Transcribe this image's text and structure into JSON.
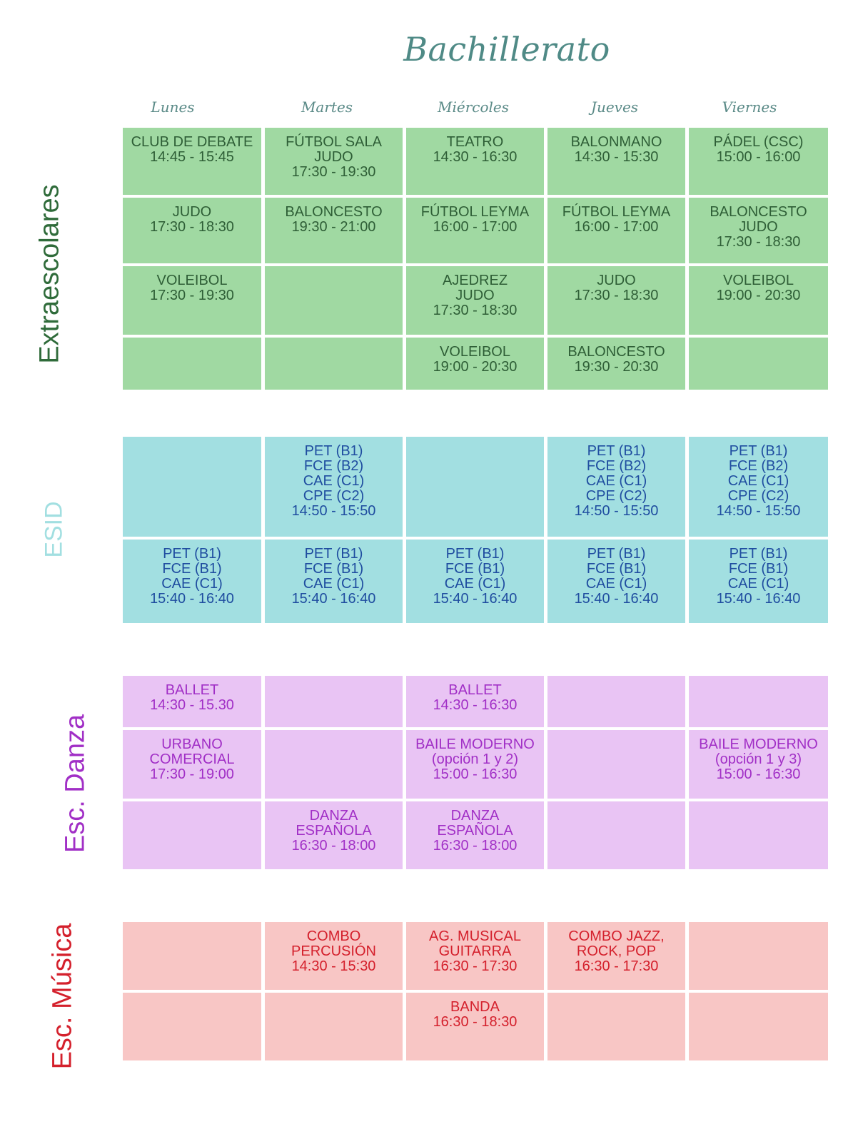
{
  "title": "Bachillerato",
  "days": [
    "Lunes",
    "Martes",
    "Miércoles",
    "Jueves",
    "Viernes"
  ],
  "colors": {
    "extraescolares": "#a0d9a2",
    "esid": "#a2dfe1",
    "danza": "#e9c4f4",
    "musica": "#f8c6c5"
  },
  "sections": {
    "extraescolares": {
      "label": "Extraescolares",
      "rows": [
        [
          "CLUB DE DEBATE\n14:45 - 15:45",
          "FÚTBOL SALA\nJUDO\n17:30 - 19:30",
          "TEATRO\n14:30 - 16:30",
          "BALONMANO\n14:30 - 15:30",
          "PÁDEL (CSC)\n15:00 - 16:00"
        ],
        [
          "JUDO\n17:30 - 18:30",
          "BALONCESTO\n19:30 - 21:00",
          "FÚTBOL LEYMA\n16:00 - 17:00",
          "FÚTBOL LEYMA\n16:00 - 17:00",
          "BALONCESTO\nJUDO\n17:30 - 18:30"
        ],
        [
          "VOLEIBOL\n17:30 - 19:30",
          "",
          "AJEDREZ\nJUDO\n17:30 - 18:30",
          "JUDO\n17:30 - 18:30",
          "VOLEIBOL\n19:00 - 20:30"
        ],
        [
          "",
          "",
          "VOLEIBOL\n19:00 - 20:30",
          "BALONCESTO\n19:30 - 20:30",
          ""
        ]
      ]
    },
    "esid": {
      "label": "ESID",
      "rows": [
        [
          "",
          "PET (B1)\nFCE (B2)\nCAE (C1)\nCPE (C2)\n14:50 - 15:50",
          "",
          "PET (B1)\nFCE (B2)\nCAE (C1)\nCPE (C2)\n14:50 - 15:50",
          "PET (B1)\nFCE (B2)\nCAE (C1)\nCPE (C2)\n14:50 - 15:50"
        ],
        [
          "PET (B1)\nFCE (B1)\nCAE (C1)\n15:40 - 16:40",
          "PET (B1)\nFCE (B1)\nCAE (C1)\n15:40 - 16:40",
          "PET (B1)\nFCE (B1)\nCAE (C1)\n15:40 - 16:40",
          "PET (B1)\nFCE (B1)\nCAE (C1)\n15:40 - 16:40",
          "PET (B1)\nFCE (B1)\nCAE (C1)\n15:40 - 16:40"
        ]
      ]
    },
    "danza": {
      "label": "Esc. Danza",
      "rows": [
        [
          "BALLET\n14:30 - 15.30",
          "",
          "BALLET\n14:30 - 16:30",
          "",
          ""
        ],
        [
          "URBANO\nCOMERCIAL\n17:30 - 19:00",
          "",
          "BAILE MODERNO\n(opción 1 y 2)\n15:00 - 16:30",
          "",
          "BAILE MODERNO\n(opción 1 y 3)\n15:00 - 16:30"
        ],
        [
          "",
          "DANZA\nESPAÑOLA\n16:30 - 18:00",
          "DANZA\nESPAÑOLA\n16:30 - 18:00",
          "",
          ""
        ]
      ]
    },
    "musica": {
      "label": "Esc. Música",
      "rows": [
        [
          "",
          "COMBO\nPERCUSIÓN\n14:30 - 15:30",
          "AG. MUSICAL\nGUITARRA\n16:30 - 17:30",
          "COMBO JAZZ,\nROCK, POP\n16:30 - 17:30",
          ""
        ],
        [
          "",
          "",
          "BANDA\n16:30 - 18:30",
          "",
          ""
        ]
      ]
    }
  }
}
